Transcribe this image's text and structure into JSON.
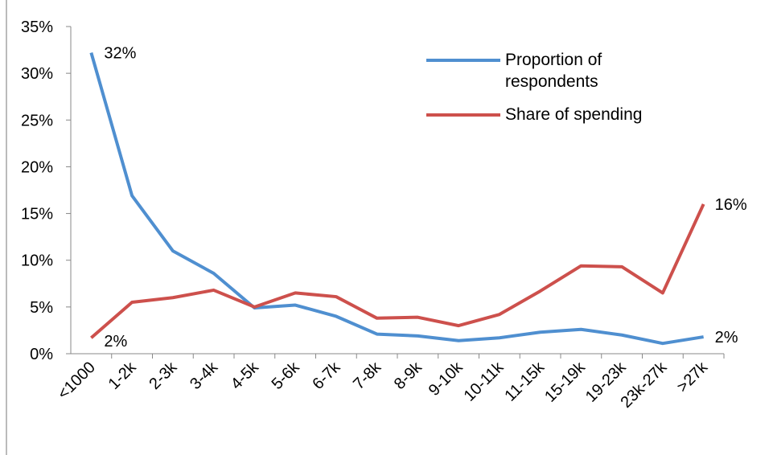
{
  "chart_data": {
    "type": "line",
    "categories": [
      "<1000",
      "1-2k",
      "2-3k",
      "3-4k",
      "4-5k",
      "5-6k",
      "6-7k",
      "7-8k",
      "8-9k",
      "9-10k",
      "10-11k",
      "11-15k",
      "15-19k",
      "19-23k",
      "23k-27k",
      ">27k"
    ],
    "series": [
      {
        "name": "Proportion of respondents",
        "color": "#4f8fd0",
        "values": [
          32.2,
          16.9,
          11.0,
          8.6,
          4.9,
          5.2,
          4.0,
          2.1,
          1.9,
          1.4,
          1.7,
          2.3,
          2.6,
          2.0,
          1.1,
          1.8
        ],
        "value_labels": [
          "32%",
          null,
          null,
          null,
          null,
          null,
          null,
          null,
          null,
          null,
          null,
          null,
          null,
          null,
          null,
          "2%"
        ]
      },
      {
        "name": "Share of spending",
        "color": "#cd504c",
        "values": [
          1.7,
          5.5,
          6.0,
          6.8,
          5.0,
          6.5,
          6.1,
          3.8,
          3.9,
          3.0,
          4.2,
          6.7,
          9.4,
          9.3,
          6.5,
          16.0
        ],
        "value_labels": [
          "2%",
          null,
          null,
          null,
          null,
          null,
          null,
          null,
          null,
          null,
          null,
          null,
          null,
          null,
          null,
          "16%"
        ]
      }
    ],
    "ylim": [
      0,
      35
    ],
    "yticks": [
      {
        "value": 0,
        "label": "0%"
      },
      {
        "value": 5,
        "label": "5%"
      },
      {
        "value": 10,
        "label": "10%"
      },
      {
        "value": 15,
        "label": "15%"
      },
      {
        "value": 20,
        "label": "20%"
      },
      {
        "value": 25,
        "label": "25%"
      },
      {
        "value": 30,
        "label": "30%"
      },
      {
        "value": 35,
        "label": "35%"
      }
    ],
    "legend": "top-right"
  }
}
